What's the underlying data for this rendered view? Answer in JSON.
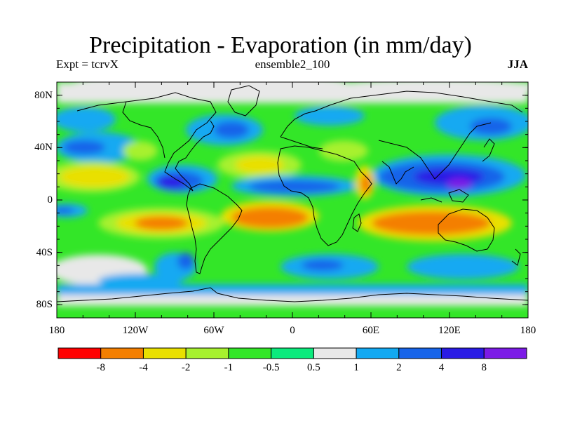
{
  "title": "Precipitation - Evaporation (in mm/day)",
  "left_string": "Expt = tcrvX",
  "center_string": "ensemble2_100",
  "right_string": "JJA",
  "lat_ticks": [
    {
      "value": 80,
      "label": "80N"
    },
    {
      "value": 40,
      "label": "40N"
    },
    {
      "value": 0,
      "label": "0"
    },
    {
      "value": -40,
      "label": "40S"
    },
    {
      "value": -80,
      "label": "80S"
    }
  ],
  "lon_ticks": [
    {
      "value": -180,
      "label": "180"
    },
    {
      "value": -120,
      "label": "120W"
    },
    {
      "value": -60,
      "label": "60W"
    },
    {
      "value": 0,
      "label": "0"
    },
    {
      "value": 60,
      "label": "60E"
    },
    {
      "value": 120,
      "label": "120E"
    },
    {
      "value": 180,
      "label": "180"
    }
  ],
  "map_extent": {
    "lon": [
      -180,
      180
    ],
    "lat": [
      -90,
      90
    ]
  },
  "colorbar": {
    "colors": [
      "#ff0000",
      "#f47f00",
      "#e9e000",
      "#a7f12f",
      "#33e628",
      "#0ceb7d",
      "#e8e8e8",
      "#12a9f2",
      "#1764e9",
      "#2a1be5",
      "#7c1be6"
    ],
    "labels": [
      "-8",
      "-4",
      "-2",
      "-1",
      "-0.5",
      "0.5",
      "1",
      "2",
      "4",
      "8"
    ]
  },
  "field_background_color": "#33e628"
}
